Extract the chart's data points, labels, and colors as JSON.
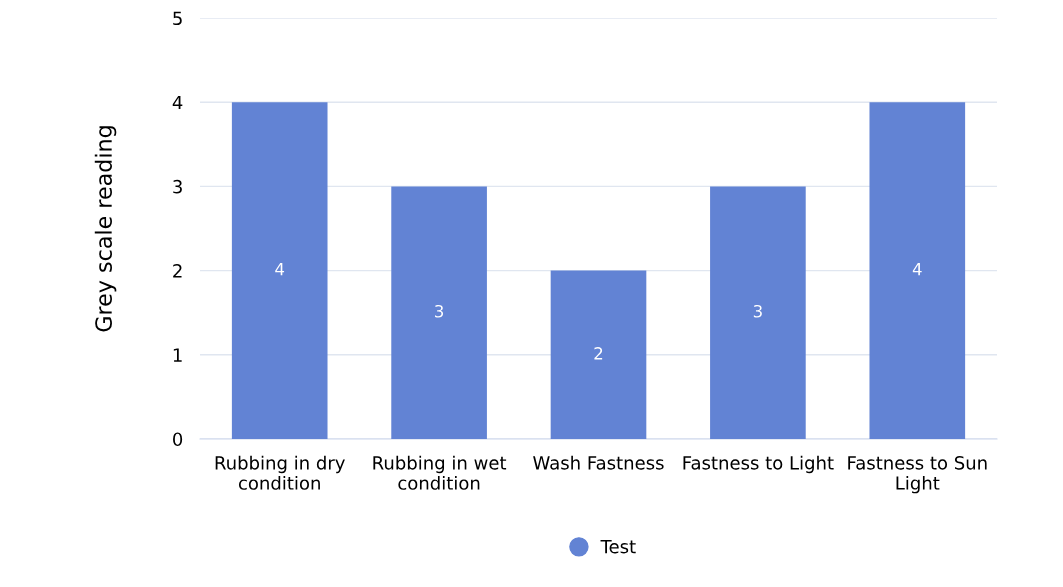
{
  "chart_data": {
    "type": "bar",
    "ylabel": "Grey scale reading",
    "categories": [
      "Rubbing in dry condition",
      "Rubbing in wet condition",
      "Wash Fastness",
      "Fastness to Light",
      "Fastness to Sun Light"
    ],
    "series": [
      {
        "name": "Test",
        "color": "#6283d4",
        "values": [
          4,
          3,
          2,
          3,
          4
        ]
      }
    ],
    "ylim": [
      0,
      5
    ],
    "yticks": [
      0,
      1,
      2,
      3,
      4,
      5
    ],
    "grid": "y",
    "legend": "bottom",
    "data_labels": true
  }
}
